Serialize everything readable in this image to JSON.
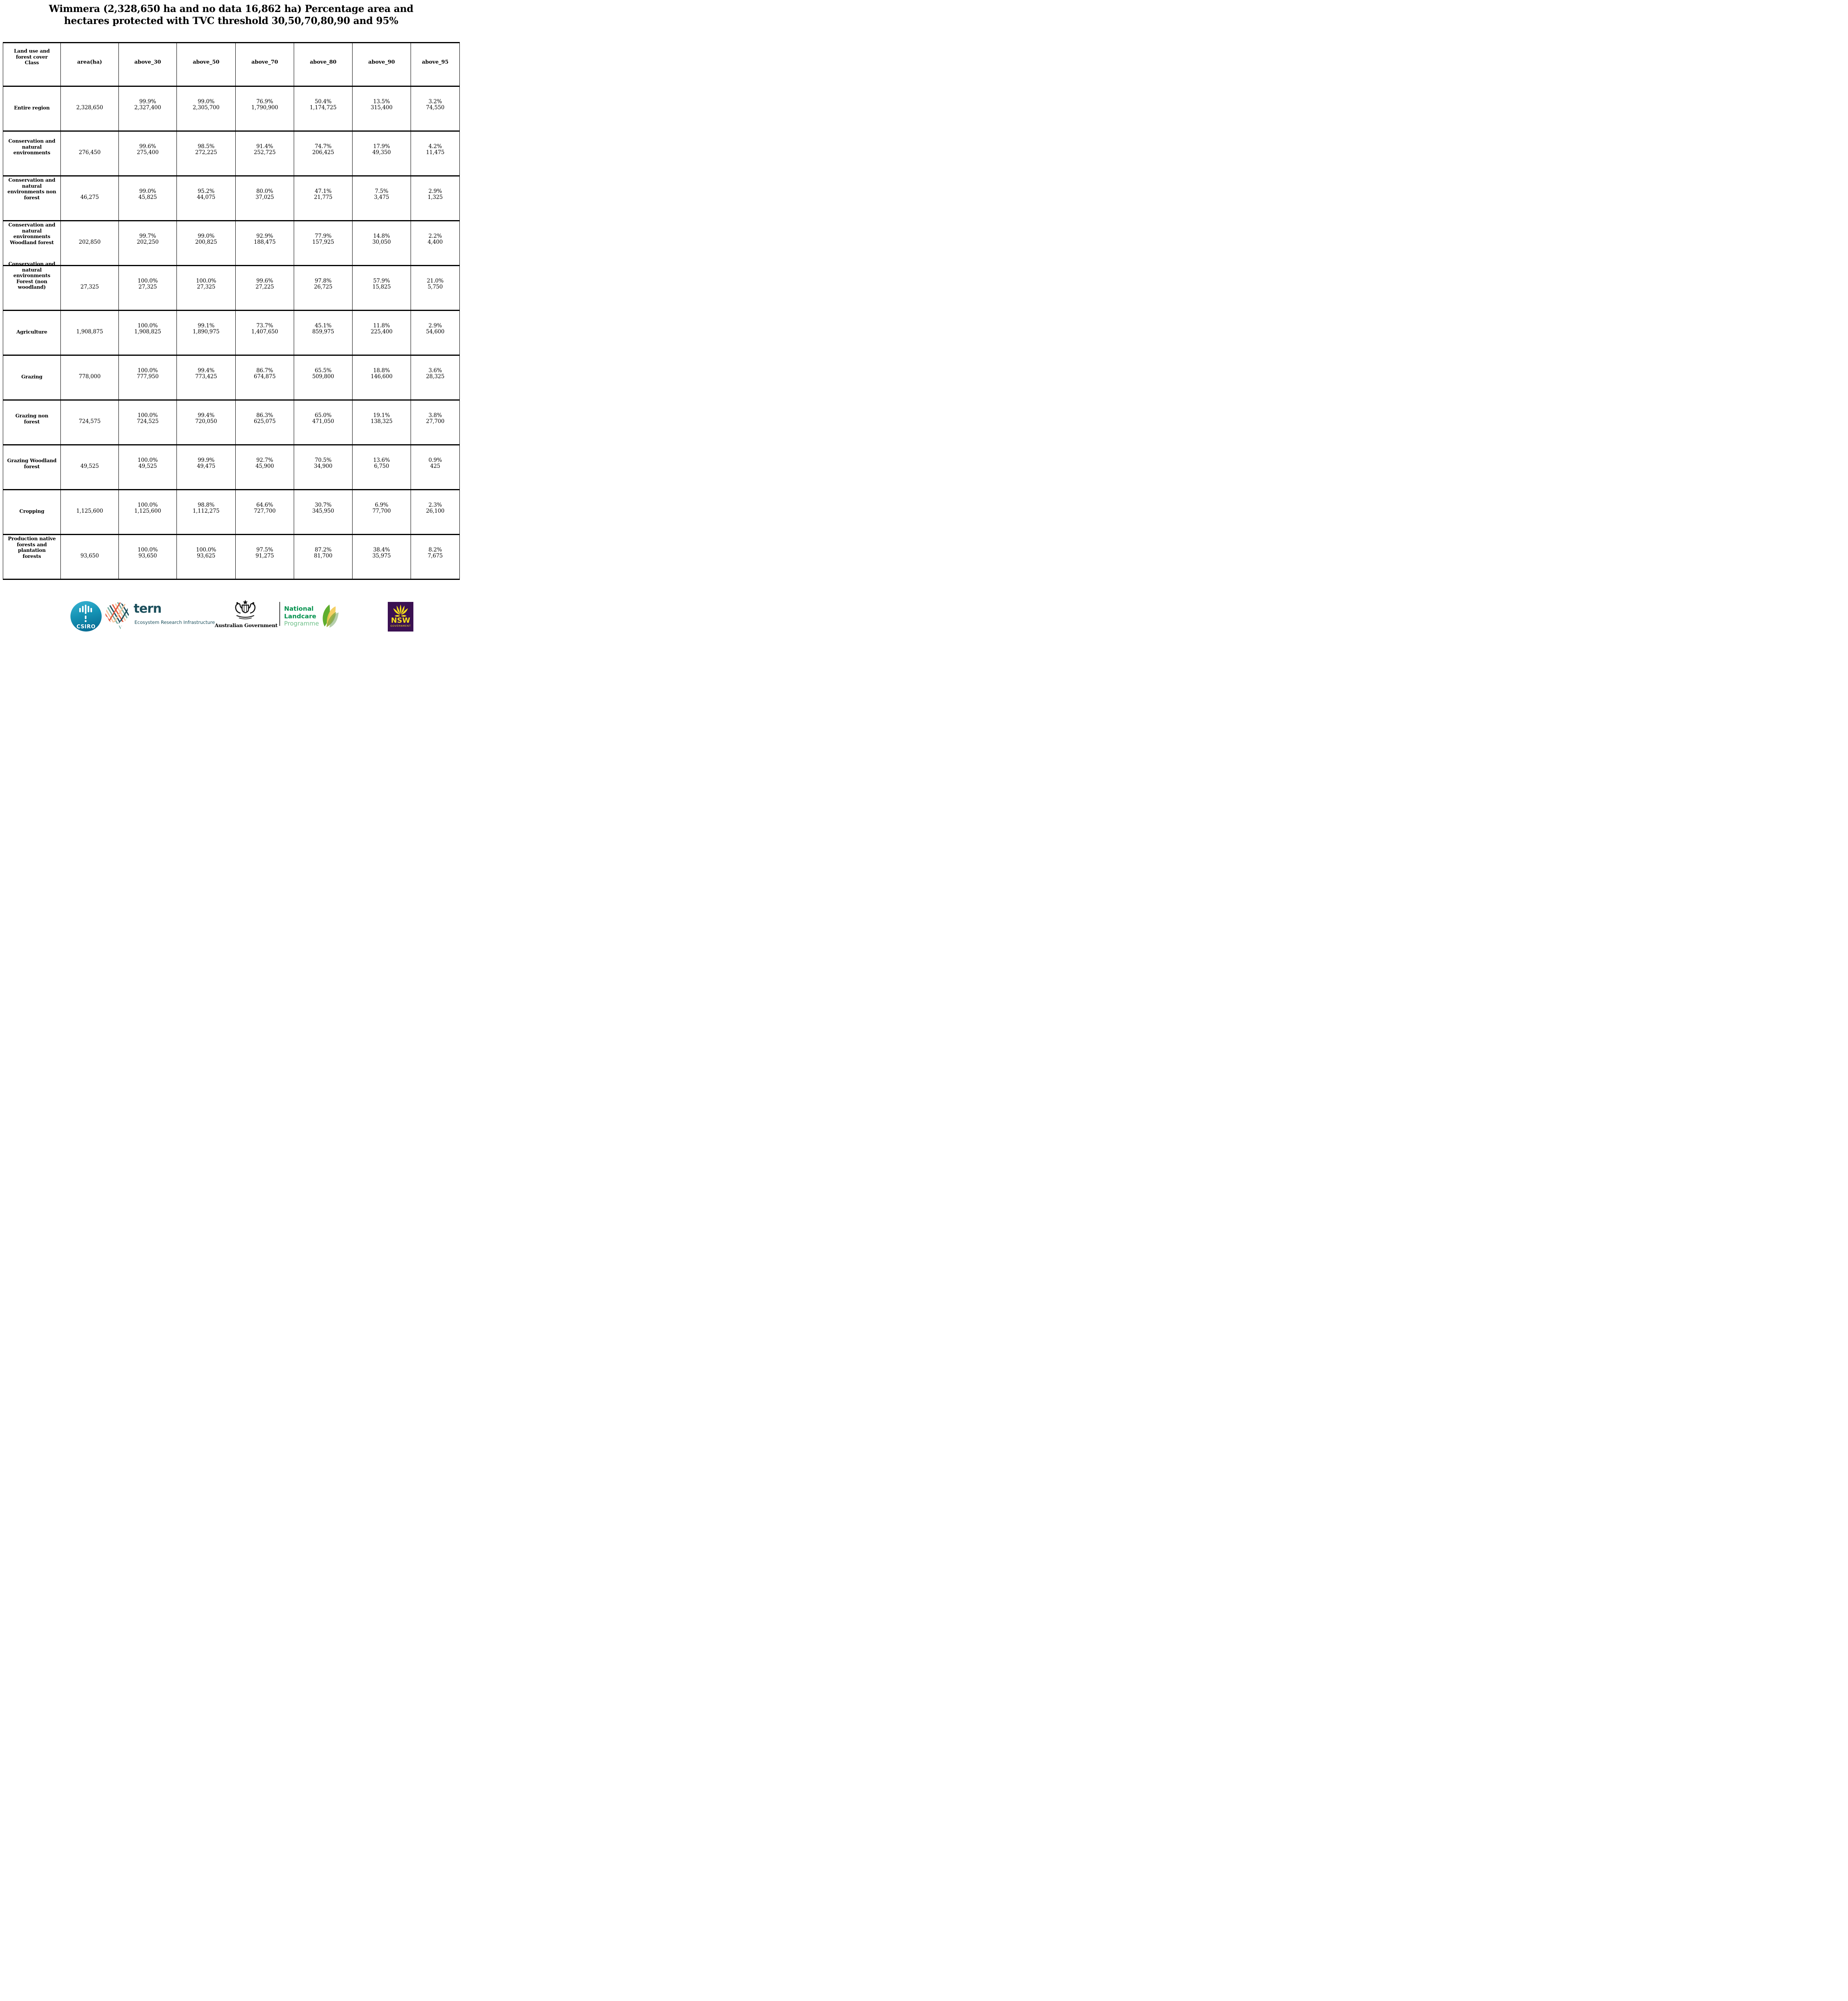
{
  "title": {
    "line1": "Wimmera (2,328,650 ha and no data 16,862 ha) Percentage area and",
    "line2": "hectares protected with TVC threshold 30,50,70,80,90 and 95%"
  },
  "chart_data": {
    "type": "table",
    "title": "Wimmera (2,328,650 ha and no data 16,862 ha) Percentage area and hectares protected with TVC threshold 30,50,70,80,90 and 95%",
    "region_area_ha": "2,328,650",
    "no_data_ha": "16,862",
    "thresholds": [
      30,
      50,
      70,
      80,
      90,
      95
    ],
    "columns": [
      "Land use and\nforest cover\nClass",
      "area(ha)",
      "above_30",
      "above_50",
      "above_70",
      "above_80",
      "above_90",
      "above_95"
    ],
    "rows": [
      {
        "class": "Entire region",
        "area": "2,328,650",
        "cells": [
          {
            "pct": "99.9%",
            "ha": "2,327,400"
          },
          {
            "pct": "99.0%",
            "ha": "2,305,700"
          },
          {
            "pct": "76.9%",
            "ha": "1,790,900"
          },
          {
            "pct": "50.4%",
            "ha": "1,174,725"
          },
          {
            "pct": "13.5%",
            "ha": "315,400"
          },
          {
            "pct": "3.2%",
            "ha": "74,550"
          }
        ]
      },
      {
        "class": "Conservation and\nnatural\nenvironments",
        "area": "276,450",
        "cells": [
          {
            "pct": "99.6%",
            "ha": "275,400"
          },
          {
            "pct": "98.5%",
            "ha": "272,225"
          },
          {
            "pct": "91.4%",
            "ha": "252,725"
          },
          {
            "pct": "74.7%",
            "ha": "206,425"
          },
          {
            "pct": "17.9%",
            "ha": "49,350"
          },
          {
            "pct": "4.2%",
            "ha": "11,475"
          }
        ]
      },
      {
        "class": "Conservation and\nnatural\nenvironments non\nforest",
        "area": "46,275",
        "cells": [
          {
            "pct": "99.0%",
            "ha": "45,825"
          },
          {
            "pct": "95.2%",
            "ha": "44,075"
          },
          {
            "pct": "80.0%",
            "ha": "37,025"
          },
          {
            "pct": "47.1%",
            "ha": "21,775"
          },
          {
            "pct": "7.5%",
            "ha": "3,475"
          },
          {
            "pct": "2.9%",
            "ha": "1,325"
          }
        ]
      },
      {
        "class": "Conservation and\nnatural\nenvironments\nWoodland forest",
        "area": "202,850",
        "cells": [
          {
            "pct": "99.7%",
            "ha": "202,250"
          },
          {
            "pct": "99.0%",
            "ha": "200,825"
          },
          {
            "pct": "92.9%",
            "ha": "188,475"
          },
          {
            "pct": "77.9%",
            "ha": "157,925"
          },
          {
            "pct": "14.8%",
            "ha": "30,050"
          },
          {
            "pct": "2.2%",
            "ha": "4,400"
          }
        ]
      },
      {
        "class": "Conservation and\nnatural\nenvironments\nForest (non\nwoodland)",
        "area": "27,325",
        "cells": [
          {
            "pct": "100.0%",
            "ha": "27,325"
          },
          {
            "pct": "100.0%",
            "ha": "27,325"
          },
          {
            "pct": "99.6%",
            "ha": "27,225"
          },
          {
            "pct": "97.8%",
            "ha": "26,725"
          },
          {
            "pct": "57.9%",
            "ha": "15,825"
          },
          {
            "pct": "21.0%",
            "ha": "5,750"
          }
        ]
      },
      {
        "class": "Agriculture",
        "area": "1,908,875",
        "cells": [
          {
            "pct": "100.0%",
            "ha": "1,908,825"
          },
          {
            "pct": "99.1%",
            "ha": "1,890,975"
          },
          {
            "pct": "73.7%",
            "ha": "1,407,650"
          },
          {
            "pct": "45.1%",
            "ha": "859,975"
          },
          {
            "pct": "11.8%",
            "ha": "225,400"
          },
          {
            "pct": "2.9%",
            "ha": "54,600"
          }
        ]
      },
      {
        "class": "Grazing",
        "area": "778,000",
        "cells": [
          {
            "pct": "100.0%",
            "ha": "777,950"
          },
          {
            "pct": "99.4%",
            "ha": "773,425"
          },
          {
            "pct": "86.7%",
            "ha": "674,875"
          },
          {
            "pct": "65.5%",
            "ha": "509,800"
          },
          {
            "pct": "18.8%",
            "ha": "146,600"
          },
          {
            "pct": "3.6%",
            "ha": "28,325"
          }
        ]
      },
      {
        "class": "Grazing non\nforest",
        "area": "724,575",
        "cells": [
          {
            "pct": "100.0%",
            "ha": "724,525"
          },
          {
            "pct": "99.4%",
            "ha": "720,050"
          },
          {
            "pct": "86.3%",
            "ha": "625,075"
          },
          {
            "pct": "65.0%",
            "ha": "471,050"
          },
          {
            "pct": "19.1%",
            "ha": "138,325"
          },
          {
            "pct": "3.8%",
            "ha": "27,700"
          }
        ]
      },
      {
        "class": "Grazing Woodland\nforest",
        "area": "49,525",
        "cells": [
          {
            "pct": "100.0%",
            "ha": "49,525"
          },
          {
            "pct": "99.9%",
            "ha": "49,475"
          },
          {
            "pct": "92.7%",
            "ha": "45,900"
          },
          {
            "pct": "70.5%",
            "ha": "34,900"
          },
          {
            "pct": "13.6%",
            "ha": "6,750"
          },
          {
            "pct": "0.9%",
            "ha": "425"
          }
        ]
      },
      {
        "class": "Cropping",
        "area": "1,125,600",
        "cells": [
          {
            "pct": "100.0%",
            "ha": "1,125,600"
          },
          {
            "pct": "98.8%",
            "ha": "1,112,275"
          },
          {
            "pct": "64.6%",
            "ha": "727,700"
          },
          {
            "pct": "30.7%",
            "ha": "345,950"
          },
          {
            "pct": "6.9%",
            "ha": "77,700"
          },
          {
            "pct": "2.3%",
            "ha": "26,100"
          }
        ]
      },
      {
        "class": "Production native\nforests and\nplantation\nforests",
        "area": "93,650",
        "cells": [
          {
            "pct": "100.0%",
            "ha": "93,650"
          },
          {
            "pct": "100.0%",
            "ha": "93,625"
          },
          {
            "pct": "97.5%",
            "ha": "91,275"
          },
          {
            "pct": "87.2%",
            "ha": "81,700"
          },
          {
            "pct": "38.4%",
            "ha": "35,975"
          },
          {
            "pct": "8.2%",
            "ha": "7,675"
          }
        ]
      }
    ]
  },
  "footer": {
    "csiro_label": "CSIRO",
    "tern_word": "tern",
    "tern_subtitle": "Ecosystem Research Infrastructure",
    "aus_gov_label": "Australian Government",
    "landcare_line1": "National",
    "landcare_line2": "Landcare",
    "landcare_line3": "Programme",
    "nsw_label": "NSW",
    "nsw_sublabel": "GOVERNMENT"
  },
  "colors": {
    "tern_teal": "#1c4f5c",
    "landcare_green": "#00914c",
    "landcare_light_green": "#6cbf87",
    "nsw_purple": "#3b1152",
    "nsw_yellow": "#f8e21a",
    "csiro_teal": "#1592b4"
  }
}
